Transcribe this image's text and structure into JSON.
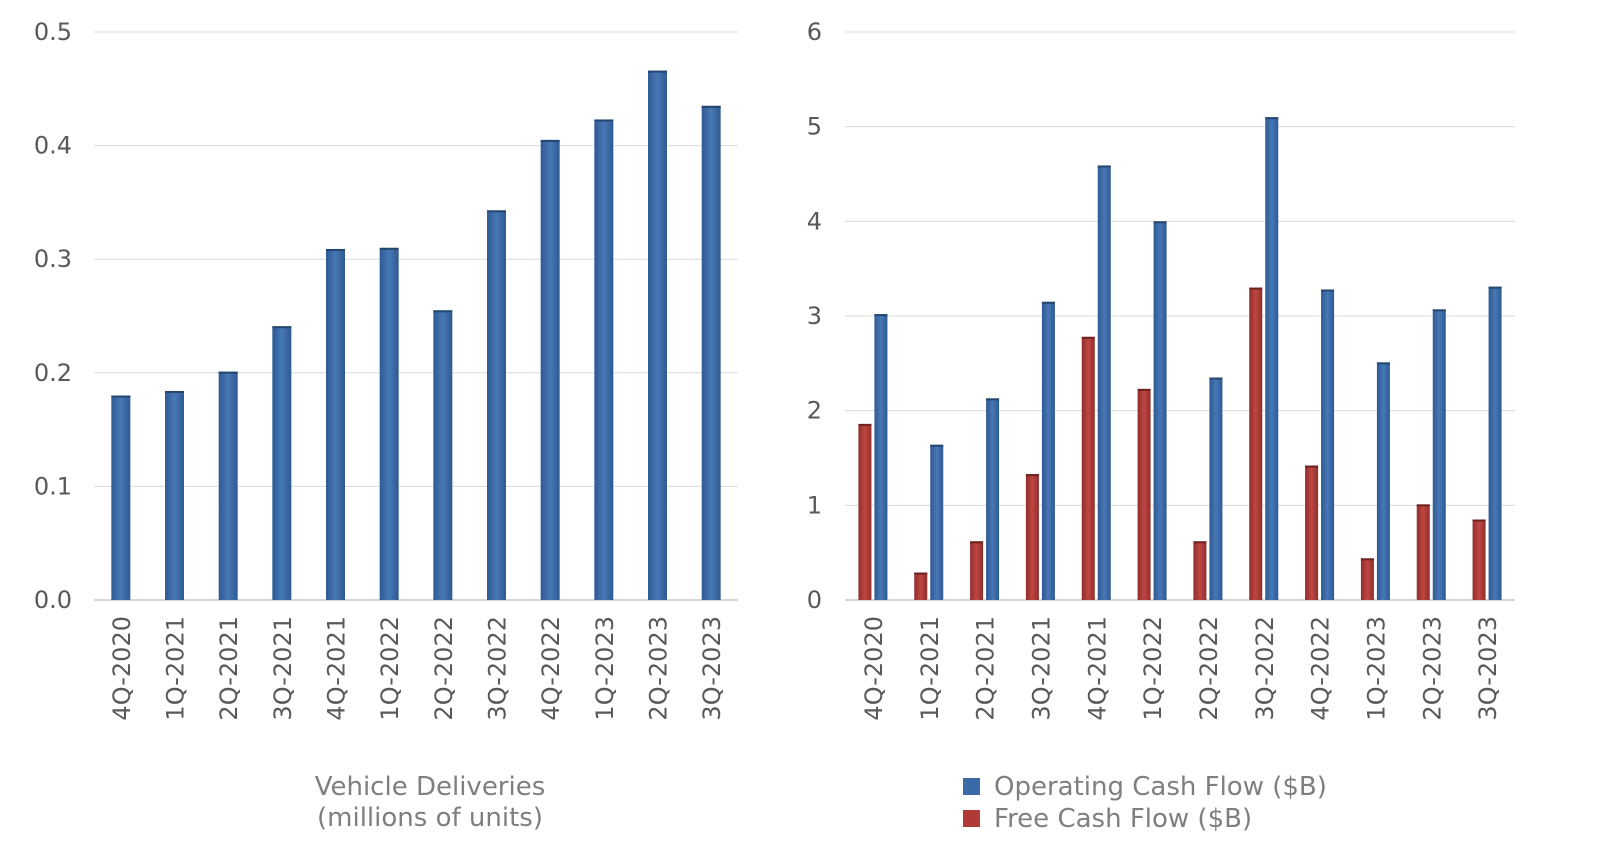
{
  "chart_data": [
    {
      "type": "bar",
      "categories": [
        "4Q-2020",
        "1Q-2021",
        "2Q-2021",
        "3Q-2021",
        "4Q-2021",
        "1Q-2022",
        "2Q-2022",
        "3Q-2022",
        "4Q-2022",
        "1Q-2023",
        "2Q-2023",
        "3Q-2023"
      ],
      "series": [
        {
          "values": [
            0.18,
            0.184,
            0.201,
            0.241,
            0.309,
            0.31,
            0.255,
            0.343,
            0.405,
            0.423,
            0.466,
            0.435
          ],
          "color": "#3a6aa8"
        }
      ],
      "yticks": [
        "0.0",
        "0.1",
        "0.2",
        "0.3",
        "0.4",
        "0.5"
      ],
      "ylim": [
        0,
        0.5
      ],
      "caption_line1": "Vehicle Deliveries",
      "caption_line2": "(millions of units)",
      "grid": true
    },
    {
      "type": "bar",
      "categories": [
        "4Q-2020",
        "1Q-2021",
        "2Q-2021",
        "3Q-2021",
        "4Q-2021",
        "1Q-2022",
        "2Q-2022",
        "3Q-2022",
        "4Q-2022",
        "1Q-2023",
        "2Q-2023",
        "3Q-2023"
      ],
      "series": [
        {
          "name": "Free Cash Flow ($B)",
          "values": [
            1.86,
            0.29,
            0.62,
            1.33,
            2.78,
            2.23,
            0.62,
            3.3,
            1.42,
            0.44,
            1.01,
            0.85
          ],
          "color": "#b03a36"
        },
        {
          "name": "Operating Cash Flow ($B)",
          "values": [
            3.02,
            1.64,
            2.13,
            3.15,
            4.59,
            4.0,
            2.35,
            5.1,
            3.28,
            2.51,
            3.07,
            3.31
          ],
          "color": "#3a6aa8"
        }
      ],
      "legend_order": [
        "Operating Cash Flow ($B)",
        "Free Cash Flow ($B)"
      ],
      "yticks": [
        "0",
        "1",
        "2",
        "3",
        "4",
        "5",
        "6"
      ],
      "ylim": [
        0,
        6
      ],
      "legend_position": "bottom",
      "grid": true
    }
  ]
}
